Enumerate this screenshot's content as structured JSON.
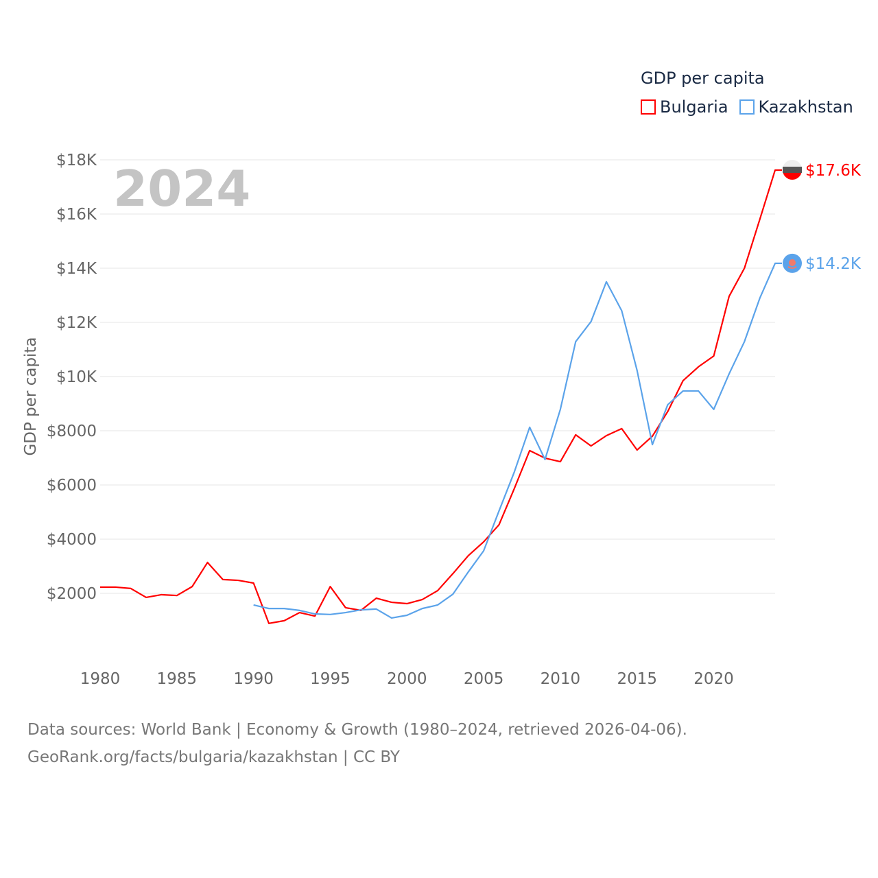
{
  "chart_data": {
    "type": "line",
    "title": "GDP per capita",
    "ylabel": "GDP per capita",
    "xlabel": "",
    "year_marker": "2024",
    "xlim": [
      1980,
      2024
    ],
    "ylim": [
      0,
      18000
    ],
    "x_ticks": [
      "1980",
      "1985",
      "1990",
      "1995",
      "2000",
      "2005",
      "2010",
      "2015",
      "2020"
    ],
    "x_tick_values": [
      1980,
      1985,
      1990,
      1995,
      2000,
      2005,
      2010,
      2015,
      2020
    ],
    "y_ticks": [
      "$2000",
      "$4000",
      "$6000",
      "$8000",
      "$10K",
      "$12K",
      "$14K",
      "$16K",
      "$18K"
    ],
    "y_tick_values": [
      2000,
      4000,
      6000,
      8000,
      10000,
      12000,
      14000,
      16000,
      18000
    ],
    "grid": true,
    "legend_position": "top-right",
    "series": [
      {
        "name": "Bulgaria",
        "color": "#ff0000",
        "end_label": "$17.6K",
        "x": [
          1980,
          1981,
          1982,
          1983,
          1984,
          1985,
          1986,
          1987,
          1988,
          1989,
          1990,
          1991,
          1992,
          1993,
          1994,
          1995,
          1996,
          1997,
          1998,
          1999,
          2000,
          2001,
          2002,
          2003,
          2004,
          2005,
          2006,
          2007,
          2008,
          2009,
          2010,
          2011,
          2012,
          2013,
          2014,
          2015,
          2016,
          2017,
          2018,
          2019,
          2020,
          2021,
          2022,
          2023,
          2024
        ],
        "values": [
          2230,
          2230,
          2180,
          1850,
          1950,
          1920,
          2250,
          3140,
          2510,
          2480,
          2380,
          890,
          990,
          1290,
          1160,
          2250,
          1470,
          1370,
          1820,
          1670,
          1620,
          1770,
          2100,
          2730,
          3390,
          3900,
          4530,
          5870,
          7270,
          6990,
          6860,
          7850,
          7440,
          7820,
          8080,
          7290,
          7800,
          8710,
          9850,
          10360,
          10760,
          12960,
          14000,
          15800,
          17620
        ]
      },
      {
        "name": "Kazakhstan",
        "color": "#5ba3ea",
        "end_label": "$14.2K",
        "x": [
          1990,
          1991,
          1992,
          1993,
          1994,
          1995,
          1996,
          1997,
          1998,
          1999,
          2000,
          2001,
          2002,
          2003,
          2004,
          2005,
          2006,
          2007,
          2008,
          2009,
          2010,
          2011,
          2012,
          2013,
          2014,
          2015,
          2016,
          2017,
          2018,
          2019,
          2020,
          2021,
          2022,
          2023,
          2024
        ],
        "values": [
          1570,
          1440,
          1440,
          1370,
          1240,
          1220,
          1290,
          1390,
          1420,
          1090,
          1190,
          1440,
          1570,
          1970,
          2790,
          3570,
          5040,
          6480,
          8130,
          6940,
          8790,
          11290,
          12030,
          13500,
          12430,
          10230,
          7490,
          8960,
          9470,
          9470,
          8790,
          10100,
          11290,
          12890,
          14180
        ]
      }
    ]
  },
  "footer": {
    "line1": "Data sources: World Bank | Economy & Growth (1980–2024, retrieved 2026-04-06).",
    "line2": "GeoRank.org/facts/bulgaria/kazakhstan | CC BY"
  }
}
